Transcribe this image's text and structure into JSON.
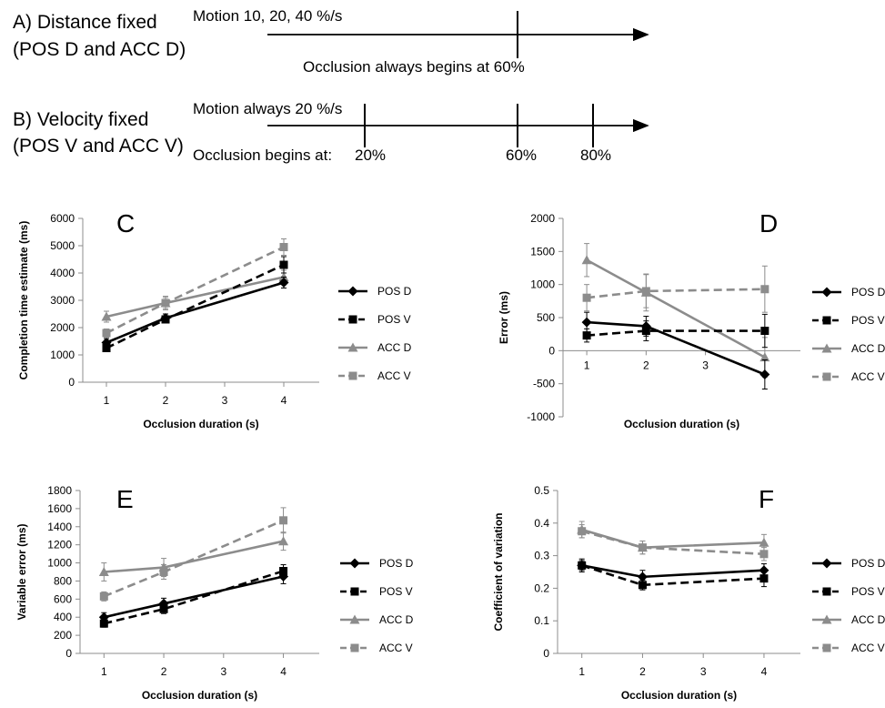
{
  "schematic": {
    "a_title_1": "A) Distance fixed",
    "a_title_2": "(POS D and ACC D)",
    "a_motion": "Motion 10, 20, 40 %/s",
    "a_occlusion": "Occlusion always begins at 60%",
    "b_title_1": "B) Velocity fixed",
    "b_title_2": "(POS V and ACC V)",
    "b_motion": "Motion always 20 %/s",
    "b_occlusion": "Occlusion begins at:",
    "b_tick_20": "20%",
    "b_tick_60": "60%",
    "b_tick_80": "80%"
  },
  "styles": {
    "POS D": {
      "color": "#000000",
      "dash": false,
      "marker": "diamond"
    },
    "POS V": {
      "color": "#000000",
      "dash": true,
      "marker": "square"
    },
    "ACC D": {
      "color": "#8c8c8c",
      "dash": false,
      "marker": "triangle"
    },
    "ACC V": {
      "color": "#8c8c8c",
      "dash": true,
      "marker": "square"
    }
  },
  "chart_data": [
    {
      "panel": "C",
      "type": "line",
      "xlabel": "Occlusion duration (s)",
      "ylabel": "Completion time estimate (ms)",
      "xlim": [
        0.6,
        4.6
      ],
      "xticks": [
        1,
        2,
        3,
        4
      ],
      "ylim": [
        0,
        6000
      ],
      "yticks": [
        0,
        1000,
        2000,
        3000,
        4000,
        5000,
        6000
      ],
      "series": [
        {
          "name": "POS D",
          "x": [
            1,
            2,
            4
          ],
          "y": [
            1450,
            2350,
            3650
          ],
          "err": [
            150,
            150,
            200
          ]
        },
        {
          "name": "POS V",
          "x": [
            1,
            2,
            4
          ],
          "y": [
            1250,
            2300,
            4300
          ],
          "err": [
            100,
            100,
            300
          ]
        },
        {
          "name": "ACC D",
          "x": [
            1,
            2,
            4
          ],
          "y": [
            2400,
            2900,
            3850
          ],
          "err": [
            200,
            200,
            250
          ]
        },
        {
          "name": "ACC V",
          "x": [
            1,
            2,
            4
          ],
          "y": [
            1800,
            2900,
            4950
          ],
          "err": [
            150,
            250,
            300
          ]
        }
      ]
    },
    {
      "panel": "D",
      "type": "line",
      "xlabel": "Occlusion duration (s)",
      "ylabel": "Error (ms)",
      "xlim": [
        0.6,
        4.6
      ],
      "xticks": [
        1,
        2,
        3
      ],
      "ticks_below_zero_axis": true,
      "ylim": [
        -1000,
        2000
      ],
      "yticks": [
        -1000,
        -500,
        0,
        500,
        1000,
        1500,
        2000
      ],
      "series": [
        {
          "name": "POS D",
          "x": [
            1,
            2,
            4
          ],
          "y": [
            430,
            370,
            -360
          ],
          "err": [
            150,
            150,
            220
          ]
        },
        {
          "name": "POS V",
          "x": [
            1,
            2,
            4
          ],
          "y": [
            230,
            300,
            300
          ],
          "err": [
            100,
            150,
            250
          ]
        },
        {
          "name": "ACC D",
          "x": [
            1,
            2,
            4
          ],
          "y": [
            1370,
            880,
            -100
          ],
          "err": [
            250,
            280,
            300
          ]
        },
        {
          "name": "ACC V",
          "x": [
            1,
            2,
            4
          ],
          "y": [
            800,
            900,
            930
          ],
          "err": [
            200,
            250,
            350
          ]
        }
      ]
    },
    {
      "panel": "E",
      "type": "line",
      "xlabel": "Occlusion duration (s)",
      "ylabel": "Variable error (ms)",
      "xlim": [
        0.6,
        4.6
      ],
      "xticks": [
        1,
        2,
        3,
        4
      ],
      "ylim": [
        0,
        1800
      ],
      "yticks": [
        0,
        200,
        400,
        600,
        800,
        1000,
        1200,
        1400,
        1600,
        1800
      ],
      "series": [
        {
          "name": "POS D",
          "x": [
            1,
            2,
            4
          ],
          "y": [
            400,
            550,
            850
          ],
          "err": [
            50,
            60,
            80
          ]
        },
        {
          "name": "POS V",
          "x": [
            1,
            2,
            4
          ],
          "y": [
            330,
            490,
            910
          ],
          "err": [
            40,
            50,
            70
          ]
        },
        {
          "name": "ACC D",
          "x": [
            1,
            2,
            4
          ],
          "y": [
            900,
            950,
            1240
          ],
          "err": [
            100,
            100,
            100
          ]
        },
        {
          "name": "ACC V",
          "x": [
            1,
            2,
            4
          ],
          "y": [
            630,
            900,
            1470
          ],
          "err": [
            50,
            80,
            140
          ]
        }
      ]
    },
    {
      "panel": "F",
      "type": "line",
      "xlabel": "Occlusion duration (s)",
      "ylabel": "Coefficient of variation",
      "xlim": [
        0.6,
        4.6
      ],
      "xticks": [
        1,
        2,
        3,
        4
      ],
      "ylim": [
        0,
        0.5
      ],
      "yticks": [
        0,
        0.1,
        0.2,
        0.3,
        0.4,
        0.5
      ],
      "series": [
        {
          "name": "POS D",
          "x": [
            1,
            2,
            4
          ],
          "y": [
            0.27,
            0.235,
            0.255
          ],
          "err": [
            0.02,
            0.02,
            0.02
          ]
        },
        {
          "name": "POS V",
          "x": [
            1,
            2,
            4
          ],
          "y": [
            0.27,
            0.21,
            0.23
          ],
          "err": [
            0.015,
            0.015,
            0.025
          ]
        },
        {
          "name": "ACC D",
          "x": [
            1,
            2,
            4
          ],
          "y": [
            0.38,
            0.325,
            0.34
          ],
          "err": [
            0.025,
            0.02,
            0.025
          ]
        },
        {
          "name": "ACC V",
          "x": [
            1,
            2,
            4
          ],
          "y": [
            0.375,
            0.325,
            0.305
          ],
          "err": [
            0.02,
            0.02,
            0.02
          ]
        }
      ]
    }
  ]
}
